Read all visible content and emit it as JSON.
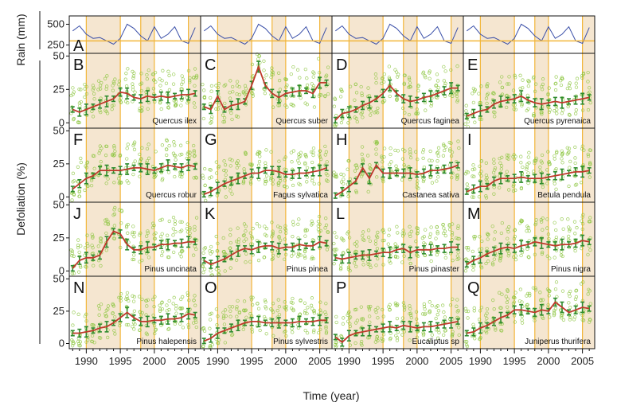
{
  "figure": {
    "ylabel_top": "Rain (mm)",
    "ylabel_main": "Defoliation (%)",
    "xlabel": "Time (year)"
  },
  "chart_data": {
    "type": "line",
    "x_ticks": [
      1990,
      1995,
      2000,
      2005
    ],
    "xlim": [
      1987.5,
      2006.8
    ],
    "rain_yticks": [
      250,
      500
    ],
    "rain_ylim": [
      150,
      600
    ],
    "defol_yticks": [
      0,
      25,
      50
    ],
    "defol_ylim": [
      -4,
      52
    ],
    "years": [
      1988,
      1989,
      1990,
      1991,
      1992,
      1993,
      1994,
      1995,
      1996,
      1997,
      1998,
      1999,
      2000,
      2001,
      2002,
      2003,
      2004,
      2005,
      2006
    ],
    "drought_periods": [
      [
        1990,
        1995
      ],
      [
        1998,
        2000
      ],
      [
        2005,
        2006.8
      ]
    ],
    "colors": {
      "shade": "#f5e6d0",
      "period_line": "#f2b63a",
      "rain_line": "#3a4fa8",
      "rain_low": "#f2b63a",
      "mean_line": "#c0392b",
      "error_bar": "#2e8b2e",
      "dots": "#8cc63f"
    },
    "rain": [
      {
        "label": "A",
        "values": [
          420,
          480,
          380,
          330,
          340,
          300,
          260,
          330,
          500,
          450,
          360,
          300,
          470,
          330,
          380,
          470,
          300,
          270,
          460
        ]
      }
    ],
    "series": [
      {
        "label": "B",
        "name": "Quercus ilex",
        "values": [
          10,
          8,
          10,
          12,
          14,
          16,
          18,
          23,
          22,
          19,
          18,
          20,
          19,
          20,
          19,
          20,
          21,
          21,
          22
        ]
      },
      {
        "label": "C",
        "name": "Quercus suber",
        "values": [
          12,
          10,
          20,
          10,
          13,
          14,
          16,
          28,
          42,
          28,
          22,
          19,
          22,
          23,
          24,
          24,
          22,
          30,
          30
        ]
      },
      {
        "label": "D",
        "name": "Quercus faginea",
        "values": [
          2,
          7,
          8,
          10,
          13,
          15,
          18,
          22,
          28,
          22,
          18,
          16,
          17,
          19,
          20,
          22,
          24,
          26,
          26
        ]
      },
      {
        "label": "E",
        "name": "Quercus pyrenaica",
        "values": [
          5,
          7,
          9,
          10,
          14,
          16,
          17,
          18,
          20,
          17,
          15,
          14,
          15,
          16,
          15,
          16,
          17,
          18,
          19
        ]
      },
      {
        "label": "F",
        "name": "Quercus robur",
        "values": [
          6,
          10,
          14,
          16,
          20,
          20,
          20,
          20,
          21,
          22,
          22,
          21,
          20,
          22,
          24,
          23,
          22,
          24,
          23
        ]
      },
      {
        "label": "G",
        "name": "Fagus sylvatica",
        "values": [
          2,
          4,
          7,
          10,
          12,
          14,
          16,
          18,
          18,
          20,
          20,
          19,
          17,
          17,
          18,
          18,
          19,
          20,
          22
        ]
      },
      {
        "label": "H",
        "name": "Castanea sativa",
        "values": [
          1,
          4,
          8,
          12,
          22,
          14,
          24,
          18,
          18,
          18,
          18,
          18,
          17,
          18,
          20,
          20,
          21,
          22,
          24
        ]
      },
      {
        "label": "I",
        "name": "Betula pendula",
        "values": [
          4,
          6,
          8,
          8,
          12,
          14,
          14,
          14,
          15,
          14,
          14,
          14,
          15,
          16,
          17,
          18,
          19,
          19,
          20
        ]
      },
      {
        "label": "J",
        "name": "Pinus uncinata",
        "values": [
          2,
          8,
          10,
          10,
          12,
          22,
          30,
          28,
          20,
          16,
          16,
          18,
          18,
          20,
          20,
          21,
          21,
          22,
          22
        ]
      },
      {
        "label": "K",
        "name": "Pinus pinea",
        "values": [
          8,
          5,
          7,
          9,
          12,
          15,
          17,
          16,
          18,
          19,
          19,
          17,
          18,
          18,
          20,
          19,
          19,
          22,
          21
        ]
      },
      {
        "label": "L",
        "name": "Pinus pinaster",
        "values": [
          10,
          9,
          10,
          11,
          12,
          12,
          13,
          14,
          14,
          16,
          17,
          14,
          16,
          16,
          16,
          17,
          17,
          18,
          18
        ]
      },
      {
        "label": "M",
        "name": "Pinus nigra",
        "values": [
          5,
          8,
          10,
          13,
          15,
          17,
          18,
          17,
          19,
          20,
          22,
          21,
          20,
          19,
          20,
          20,
          21,
          23,
          22
        ]
      },
      {
        "label": "N",
        "name": "Pinus halepensis",
        "values": [
          8,
          8,
          9,
          10,
          12,
          13,
          16,
          20,
          24,
          20,
          17,
          17,
          18,
          18,
          19,
          19,
          20,
          23,
          22
        ]
      },
      {
        "label": "O",
        "name": "Pinus sylvestris",
        "values": [
          2,
          4,
          8,
          10,
          12,
          14,
          16,
          17,
          17,
          16,
          16,
          16,
          16,
          16,
          17,
          17,
          17,
          18,
          18
        ]
      },
      {
        "label": "P",
        "name": "Eucaliptus sp",
        "values": [
          5,
          1,
          6,
          8,
          9,
          10,
          11,
          12,
          13,
          12,
          14,
          13,
          12,
          13,
          13,
          14,
          15,
          16,
          17
        ]
      },
      {
        "label": "Q",
        "name": "Juniperus thurifera",
        "values": [
          8,
          9,
          12,
          14,
          17,
          20,
          22,
          26,
          26,
          25,
          24,
          26,
          25,
          32,
          28,
          24,
          26,
          28,
          27
        ]
      }
    ]
  }
}
